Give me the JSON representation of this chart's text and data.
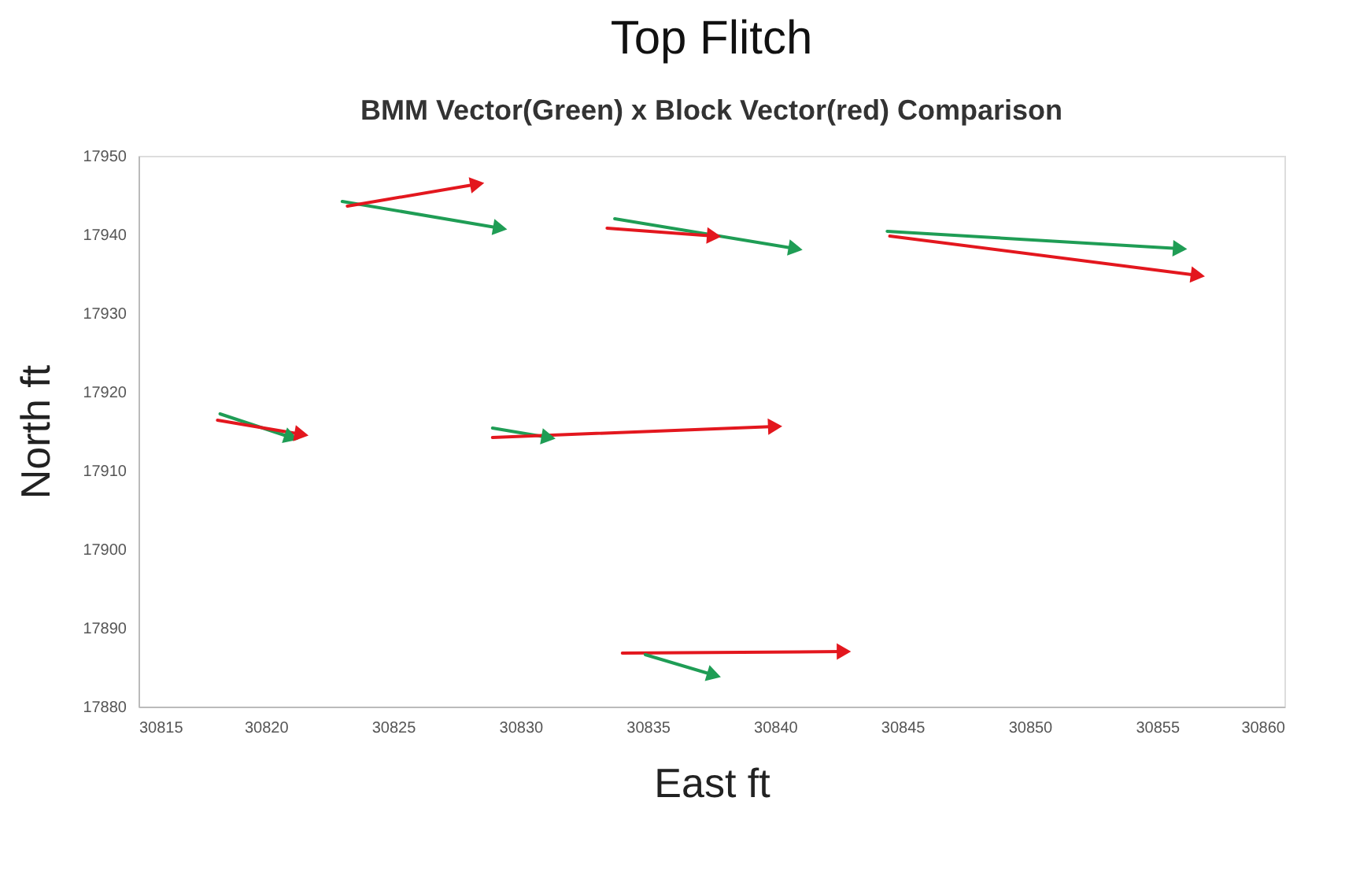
{
  "chart_data": {
    "type": "line",
    "title": "Top Flitch",
    "subtitle": "BMM Vector(Green) x Block Vector(red) Comparison",
    "xlabel": "East ft",
    "ylabel": "North ft",
    "xlim": [
      30815,
      30860
    ],
    "xticks": [
      30815,
      30820,
      30825,
      30830,
      30835,
      30840,
      30845,
      30850,
      30855,
      30860
    ],
    "ylim": [
      17880,
      17950
    ],
    "yticks": [
      17880,
      17890,
      17900,
      17910,
      17920,
      17930,
      17940,
      17950
    ],
    "grid": false,
    "marker": "triangle",
    "line_style": "solid",
    "series": [
      {
        "color": "#1f9d55",
        "x": [
          30818.2,
          30821.0
        ],
        "values": [
          17917.2,
          17914.2
        ]
      },
      {
        "color": "#e3171e",
        "x": [
          30818.1,
          30821.4
        ],
        "values": [
          17916.4,
          17914.6
        ]
      },
      {
        "color": "#1f9d55",
        "x": [
          30823.0,
          30829.2
        ],
        "values": [
          17944.2,
          17940.8
        ]
      },
      {
        "color": "#e3171e",
        "x": [
          30823.2,
          30828.3
        ],
        "values": [
          17943.6,
          17946.4
        ]
      },
      {
        "color": "#1f9d55",
        "x": [
          30828.9,
          30831.1
        ],
        "values": [
          17915.4,
          17914.2
        ]
      },
      {
        "color": "#e3171e",
        "x": [
          30828.9,
          30840.0
        ],
        "values": [
          17914.2,
          17915.6
        ]
      },
      {
        "color": "#1f9d55",
        "x": [
          30833.7,
          30840.8
        ],
        "values": [
          17942.0,
          17938.2
        ]
      },
      {
        "color": "#e3171e",
        "x": [
          30833.4,
          30837.6
        ],
        "values": [
          17940.8,
          17939.8
        ]
      },
      {
        "color": "#1f9d55",
        "x": [
          30844.4,
          30855.9
        ],
        "values": [
          17940.4,
          17938.2
        ]
      },
      {
        "color": "#e3171e",
        "x": [
          30844.5,
          30856.6
        ],
        "values": [
          17939.8,
          17934.8
        ]
      },
      {
        "color": "#e3171e",
        "x": [
          30834.0,
          30842.7
        ],
        "values": [
          17886.8,
          17887.0
        ]
      },
      {
        "color": "#1f9d55",
        "x": [
          30834.9,
          30837.6
        ],
        "values": [
          17886.6,
          17884.0
        ]
      }
    ]
  }
}
